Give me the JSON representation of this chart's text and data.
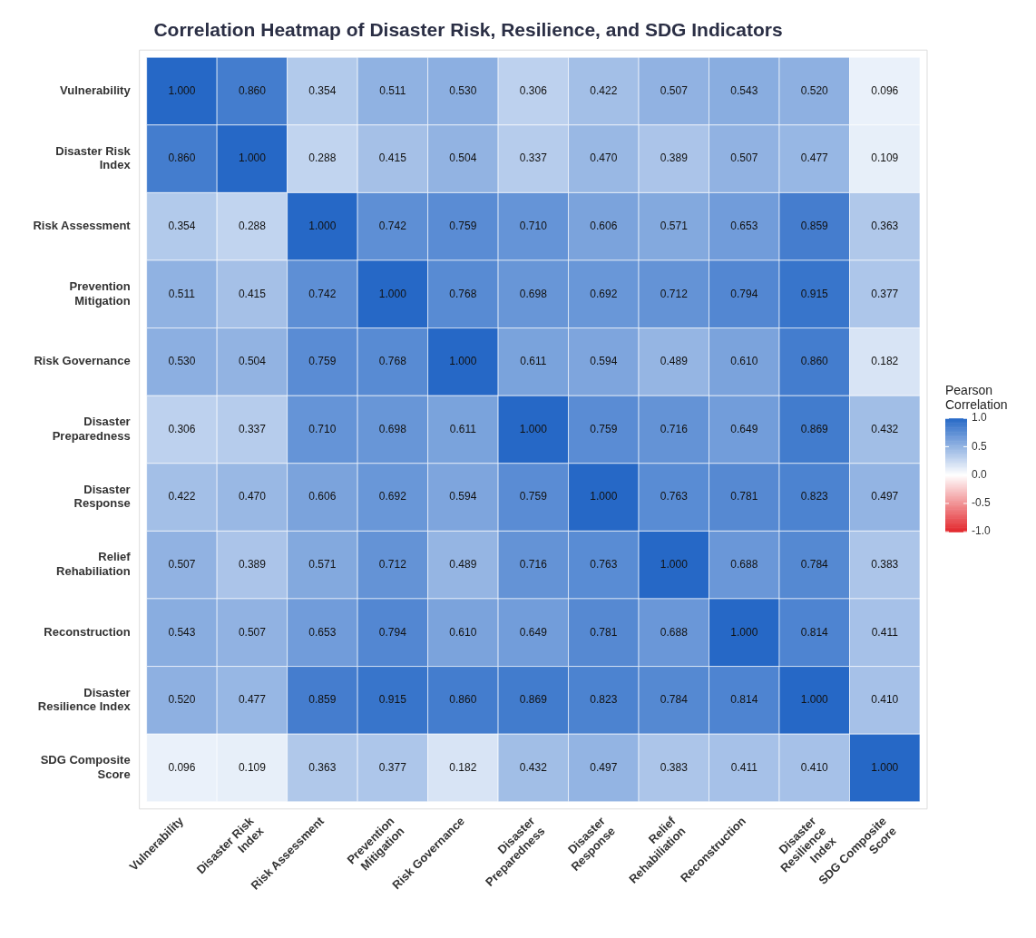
{
  "chart_data": {
    "type": "heatmap",
    "title": "Correlation Heatmap of Disaster Risk, Resilience, and SDG Indicators",
    "categories": [
      "Vulnerability",
      "Disaster Risk Index",
      "Risk Assessment",
      "Prevention Mitigation",
      "Risk Governance",
      "Disaster Preparedness",
      "Disaster Response",
      "Relief Rehabiliation",
      "Reconstruction",
      "Disaster Resilience Index",
      "SDG Composite Score"
    ],
    "y_categories": [
      "Vulnerability",
      "Disaster Risk Index",
      "Risk Assessment",
      "Prevention Mitigation",
      "Risk Governance",
      "Disaster Preparedness",
      "Disaster Response",
      "Relief Rehabiliation",
      "Reconstruction",
      "Disaster Resilience Index",
      "SDG Composite Score"
    ],
    "cells": [
      [
        1.0,
        0.86,
        0.354,
        0.511,
        0.53,
        0.306,
        0.422,
        0.507,
        0.543,
        0.52,
        0.096
      ],
      [
        0.86,
        1.0,
        0.288,
        0.415,
        0.504,
        0.337,
        0.47,
        0.389,
        0.507,
        0.477,
        0.109
      ],
      [
        0.354,
        0.288,
        1.0,
        0.742,
        0.759,
        0.71,
        0.606,
        0.571,
        0.653,
        0.859,
        0.363
      ],
      [
        0.511,
        0.415,
        0.742,
        1.0,
        0.768,
        0.698,
        0.692,
        0.712,
        0.794,
        0.915,
        0.377
      ],
      [
        0.53,
        0.504,
        0.759,
        0.768,
        1.0,
        0.611,
        0.594,
        0.489,
        0.61,
        0.86,
        0.182
      ],
      [
        0.306,
        0.337,
        0.71,
        0.698,
        0.611,
        1.0,
        0.759,
        0.716,
        0.649,
        0.869,
        0.432
      ],
      [
        0.422,
        0.47,
        0.606,
        0.692,
        0.594,
        0.759,
        1.0,
        0.763,
        0.781,
        0.823,
        0.497
      ],
      [
        0.507,
        0.389,
        0.571,
        0.712,
        0.489,
        0.716,
        0.763,
        1.0,
        0.688,
        0.784,
        0.383
      ],
      [
        0.543,
        0.507,
        0.653,
        0.794,
        0.61,
        0.649,
        0.781,
        0.688,
        1.0,
        0.814,
        0.411
      ],
      [
        0.52,
        0.477,
        0.859,
        0.915,
        0.86,
        0.869,
        0.823,
        0.784,
        0.814,
        1.0,
        0.41
      ],
      [
        0.096,
        0.109,
        0.363,
        0.377,
        0.182,
        0.432,
        0.497,
        0.383,
        0.411,
        0.41,
        1.0
      ]
    ],
    "clabel": "Pearson Correlation",
    "clim": [
      -1,
      1
    ],
    "cticks": [
      {
        "value": 1,
        "label": "1.0"
      },
      {
        "value": 0.5,
        "label": "0.5"
      },
      {
        "value": 0,
        "label": "0.0"
      },
      {
        "value": -0.5,
        "label": "-0.5"
      },
      {
        "value": -1,
        "label": "-1.0"
      }
    ],
    "cell_labels": [
      [
        "1.000",
        "0.860",
        "0.354",
        "0.511",
        "0.530",
        "0.306",
        "0.422",
        "0.507",
        "0.543",
        "0.520",
        "0.096"
      ],
      [
        "0.860",
        "1.000",
        "0.288",
        "0.415",
        "0.504",
        "0.337",
        "0.470",
        "0.389",
        "0.507",
        "0.477",
        "0.109"
      ],
      [
        "0.354",
        "0.288",
        "1.000",
        "0.742",
        "0.759",
        "0.710",
        "0.606",
        "0.571",
        "0.653",
        "0.859",
        "0.363"
      ],
      [
        "0.511",
        "0.415",
        "0.742",
        "1.000",
        "0.768",
        "0.698",
        "0.692",
        "0.712",
        "0.794",
        "0.915",
        "0.377"
      ],
      [
        "0.530",
        "0.504",
        "0.759",
        "0.768",
        "1.000",
        "0.611",
        "0.594",
        "0.489",
        "0.610",
        "0.860",
        "0.182"
      ],
      [
        "0.306",
        "0.337",
        "0.710",
        "0.698",
        "0.611",
        "1.000",
        "0.759",
        "0.716",
        "0.649",
        "0.869",
        "0.432"
      ],
      [
        "0.422",
        "0.470",
        "0.606",
        "0.692",
        "0.594",
        "0.759",
        "1.000",
        "0.763",
        "0.781",
        "0.823",
        "0.497"
      ],
      [
        "0.507",
        "0.389",
        "0.571",
        "0.712",
        "0.489",
        "0.716",
        "0.763",
        "1.000",
        "0.688",
        "0.784",
        "0.383"
      ],
      [
        "0.543",
        "0.507",
        "0.653",
        "0.794",
        "0.610",
        "0.649",
        "0.781",
        "0.688",
        "1.000",
        "0.814",
        "0.411"
      ],
      [
        "0.520",
        "0.477",
        "0.859",
        "0.915",
        "0.860",
        "0.869",
        "0.823",
        "0.784",
        "0.814",
        "1.000",
        "0.410"
      ],
      [
        "0.096",
        "0.109",
        "0.363",
        "0.377",
        "0.182",
        "0.432",
        "0.497",
        "0.383",
        "0.411",
        "0.410",
        "1.000"
      ]
    ],
    "legend": false
  }
}
